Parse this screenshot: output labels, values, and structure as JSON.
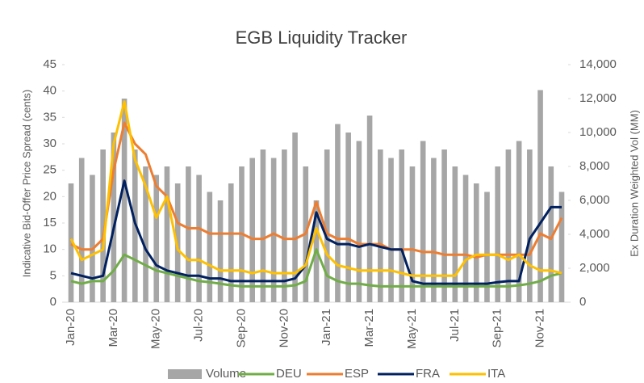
{
  "chart_data": {
    "type": "line",
    "title": "EGB Liquidity Tracker",
    "y_label": "Indicative Bid-Offer Price Spread (cents)",
    "y2_label": "Ex Duration Weighted Vol (MM)",
    "categories": [
      "Jan-20",
      null,
      null,
      null,
      "Mar-20",
      null,
      null,
      null,
      "May-20",
      null,
      null,
      null,
      "Jul-20",
      null,
      null,
      null,
      "Sep-20",
      null,
      null,
      null,
      "Nov-20",
      null,
      null,
      null,
      "Jan-21",
      null,
      null,
      null,
      "Mar-21",
      null,
      null,
      null,
      "May-21",
      null,
      null,
      null,
      "Jul-21",
      null,
      null,
      null,
      "Sep-21",
      null,
      null,
      null,
      "Nov-21",
      null,
      null
    ],
    "ylim": [
      0,
      45
    ],
    "yticks": [
      0,
      5,
      10,
      15,
      20,
      25,
      30,
      35,
      40,
      45
    ],
    "y2lim": [
      0,
      14000
    ],
    "y2ticks": [
      0,
      {
        "value": 2000,
        "label": "2,000"
      },
      {
        "value": 4000,
        "label": "4,000"
      },
      {
        "value": 6000,
        "label": "6,000"
      },
      {
        "value": 8000,
        "label": "8,000"
      },
      {
        "value": 10000,
        "label": "10,000"
      },
      {
        "value": 12000,
        "label": "12,000"
      },
      {
        "value": 14000,
        "label": "14,000"
      }
    ],
    "series": [
      {
        "name": "Volume",
        "type": "bar",
        "axis": "y2",
        "color": "#a6a6a6",
        "values": [
          7000,
          8500,
          7500,
          9000,
          10000,
          12000,
          9000,
          8000,
          7500,
          8000,
          7000,
          8000,
          7500,
          6500,
          6000,
          7000,
          8000,
          8500,
          9000,
          8500,
          9000,
          10000,
          8000,
          6000,
          9000,
          10500,
          10000,
          9500,
          11000,
          9000,
          8500,
          9000,
          8000,
          9500,
          8500,
          9000,
          8000,
          7500,
          7000,
          6500,
          8000,
          9000,
          9500,
          9000,
          12500,
          8000,
          6500
        ]
      },
      {
        "name": "DEU",
        "color": "#70ad47",
        "values": [
          4,
          3.5,
          4,
          4,
          6,
          9,
          8,
          7,
          6,
          5.5,
          5,
          4.5,
          4,
          3.8,
          3.5,
          3.2,
          3,
          3,
          3,
          3,
          3,
          3.2,
          4,
          10,
          5,
          4,
          3.5,
          3.5,
          3.2,
          3,
          3,
          3,
          3,
          3,
          3,
          3,
          3,
          3,
          3,
          3,
          3,
          3,
          3.2,
          3.5,
          4,
          5,
          5.5
        ]
      },
      {
        "name": "ESP",
        "color": "#ed7d31",
        "values": [
          11,
          10,
          10,
          12,
          25,
          34,
          30,
          28,
          22,
          20,
          15,
          14,
          14,
          13,
          13,
          13,
          13,
          12,
          12,
          13,
          12,
          12,
          13,
          19,
          13,
          12,
          12,
          11,
          11,
          11,
          10,
          10,
          10,
          9.5,
          9.5,
          9,
          9,
          9,
          8.5,
          9,
          9,
          9,
          9,
          9,
          13,
          12,
          16
        ]
      },
      {
        "name": "FRA",
        "color": "#002060",
        "values": [
          5.5,
          5,
          4.5,
          5,
          14,
          23,
          15,
          10,
          7,
          6,
          5.5,
          5,
          5,
          4.5,
          4.5,
          4,
          4,
          4,
          4,
          4,
          4,
          4.5,
          7,
          17,
          12,
          11,
          11,
          10.5,
          11,
          10.5,
          10,
          10,
          4,
          3.5,
          3.5,
          3.5,
          3.5,
          3.5,
          3.5,
          3.5,
          3.8,
          4,
          4,
          12,
          15,
          18,
          18
        ]
      },
      {
        "name": "ITA",
        "color": "#ffc000",
        "values": [
          12,
          8,
          9,
          10,
          30,
          38,
          27,
          22,
          16,
          20,
          10,
          8,
          8,
          7,
          6,
          6,
          6,
          5.5,
          6,
          5.5,
          5.5,
          5.5,
          7,
          14,
          9,
          7,
          6.5,
          6,
          6,
          6,
          6,
          5.5,
          5,
          5,
          5,
          5,
          5,
          8,
          9,
          9,
          9,
          8,
          9,
          7,
          6,
          6,
          5.5
        ]
      }
    ]
  }
}
